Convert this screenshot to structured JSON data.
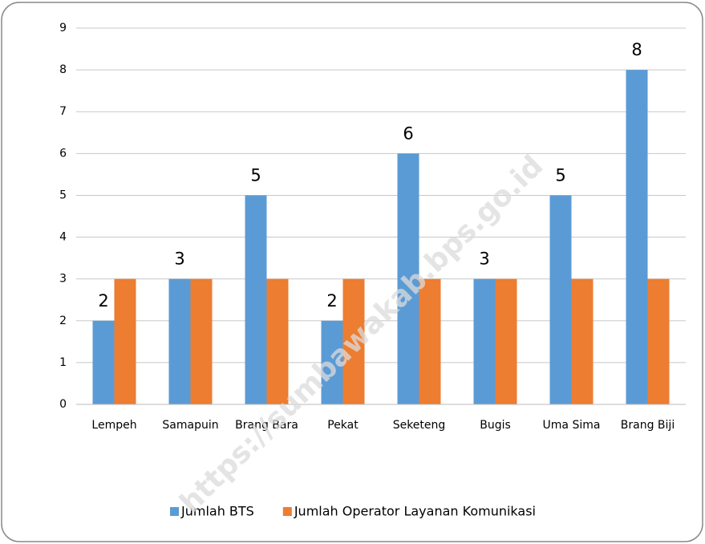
{
  "chart_data": {
    "type": "bar",
    "categories": [
      "Lempeh",
      "Samapuin",
      "Brang Bara",
      "Pekat",
      "Seketeng",
      "Bugis",
      "Uma Sima",
      "Brang Biji"
    ],
    "series": [
      {
        "name": "Jumlah BTS",
        "color": "#5b9bd5",
        "values": [
          2,
          3,
          5,
          2,
          6,
          3,
          5,
          8
        ]
      },
      {
        "name": "Jumlah Operator Layanan Komunikasi",
        "color": "#ed7d31",
        "values": [
          3,
          3,
          3,
          3,
          3,
          3,
          3,
          3
        ]
      }
    ],
    "ylim": [
      0,
      9
    ],
    "yticks": [
      0,
      1,
      2,
      3,
      4,
      5,
      6,
      7,
      8,
      9
    ],
    "grid": true,
    "legend": "bottom",
    "watermark": "https://sumbawakab.bps.go.id"
  }
}
